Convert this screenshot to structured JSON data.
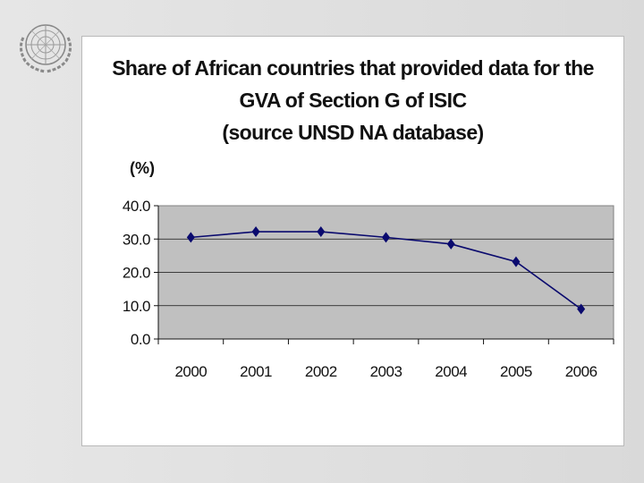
{
  "slide": {
    "emblem_icon": "un-emblem-icon"
  },
  "chart_data": {
    "type": "line",
    "title_lines": [
      "Share of African countries that provided data for the",
      "GVA of Section G of ISIC",
      "(source UNSD NA database)"
    ],
    "ylabel": "(%)",
    "xlabel": "",
    "categories": [
      "2000",
      "2001",
      "2002",
      "2003",
      "2004",
      "2005",
      "2006"
    ],
    "series": [
      {
        "name": "Share",
        "values": [
          30.5,
          32.2,
          32.2,
          30.5,
          28.5,
          23.2,
          9.0
        ],
        "color": "#0a0a6e"
      }
    ],
    "ylim": [
      0,
      40
    ],
    "yticks": [
      "0.0",
      "10.0",
      "20.0",
      "30.0",
      "40.0"
    ],
    "ytick_values": [
      0,
      10,
      20,
      30,
      40
    ],
    "plot_background": "#c0c0c0",
    "grid": true,
    "legend": "none"
  }
}
